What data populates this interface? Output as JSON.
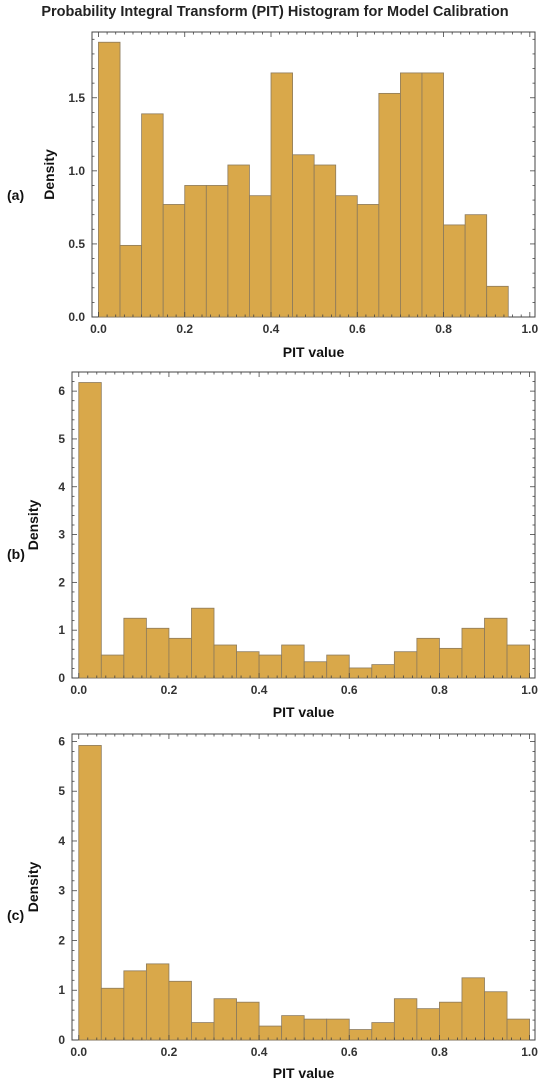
{
  "title": "Probability Integral Transform (PIT) Histogram for Model Calibration",
  "colors": {
    "bar_fill": "#D9A84A",
    "bar_stroke": "#8C7A5C",
    "axis": "#444444"
  },
  "chart_data": [
    {
      "type": "bar",
      "panel_label": "(a)",
      "xlabel": "PIT value",
      "ylabel": "Density",
      "bin_edges": [
        0.0,
        0.05,
        0.1,
        0.15,
        0.2,
        0.25,
        0.3,
        0.35,
        0.4,
        0.45,
        0.5,
        0.55,
        0.6,
        0.65,
        0.7,
        0.75,
        0.8,
        0.85,
        0.9,
        0.95,
        1.0
      ],
      "values": [
        1.88,
        0.49,
        1.39,
        0.77,
        0.9,
        0.9,
        1.04,
        0.83,
        1.67,
        1.11,
        1.04,
        0.83,
        0.77,
        1.53,
        1.67,
        1.67,
        0.63,
        0.7,
        0.21,
        0
      ],
      "xlim": [
        0,
        1.0
      ],
      "ylim": [
        0,
        1.95
      ],
      "xticks": [
        "0.0",
        "0.2",
        "0.4",
        "0.6",
        "0.8",
        "1.0"
      ],
      "yticks": [
        "0.0",
        "0.5",
        "1.0",
        "1.5"
      ]
    },
    {
      "type": "bar",
      "panel_label": "(b)",
      "xlabel": "PIT value",
      "ylabel": "Density",
      "bin_edges": [
        0.0,
        0.05,
        0.1,
        0.15,
        0.2,
        0.25,
        0.3,
        0.35,
        0.4,
        0.45,
        0.5,
        0.55,
        0.6,
        0.65,
        0.7,
        0.75,
        0.8,
        0.85,
        0.9,
        0.95,
        1.0
      ],
      "values": [
        6.18,
        0.48,
        1.25,
        1.04,
        0.83,
        1.46,
        0.69,
        0.55,
        0.48,
        0.69,
        0.34,
        0.48,
        0.21,
        0.28,
        0.55,
        0.83,
        0.62,
        1.04,
        1.25,
        0.69
      ],
      "xlim": [
        0,
        1.0
      ],
      "ylim": [
        0,
        6.4
      ],
      "xticks": [
        "0.0",
        "0.2",
        "0.4",
        "0.6",
        "0.8",
        "1.0"
      ],
      "yticks": [
        "0",
        "1",
        "2",
        "3",
        "4",
        "5",
        "6"
      ]
    },
    {
      "type": "bar",
      "panel_label": "(c)",
      "xlabel": "PIT value",
      "ylabel": "Density",
      "bin_edges": [
        0.0,
        0.05,
        0.1,
        0.15,
        0.2,
        0.25,
        0.3,
        0.35,
        0.4,
        0.45,
        0.5,
        0.55,
        0.6,
        0.65,
        0.7,
        0.75,
        0.8,
        0.85,
        0.9,
        0.95,
        1.0
      ],
      "values": [
        5.92,
        1.04,
        1.39,
        1.53,
        1.18,
        0.35,
        0.83,
        0.76,
        0.28,
        0.49,
        0.42,
        0.42,
        0.21,
        0.35,
        0.83,
        0.63,
        0.76,
        1.25,
        0.97,
        0.42
      ],
      "xlim": [
        0,
        1.0
      ],
      "ylim": [
        0,
        6.15
      ],
      "xticks": [
        "0.0",
        "0.2",
        "0.4",
        "0.6",
        "0.8",
        "1.0"
      ],
      "yticks": [
        "0",
        "1",
        "2",
        "3",
        "4",
        "5",
        "6"
      ]
    }
  ]
}
